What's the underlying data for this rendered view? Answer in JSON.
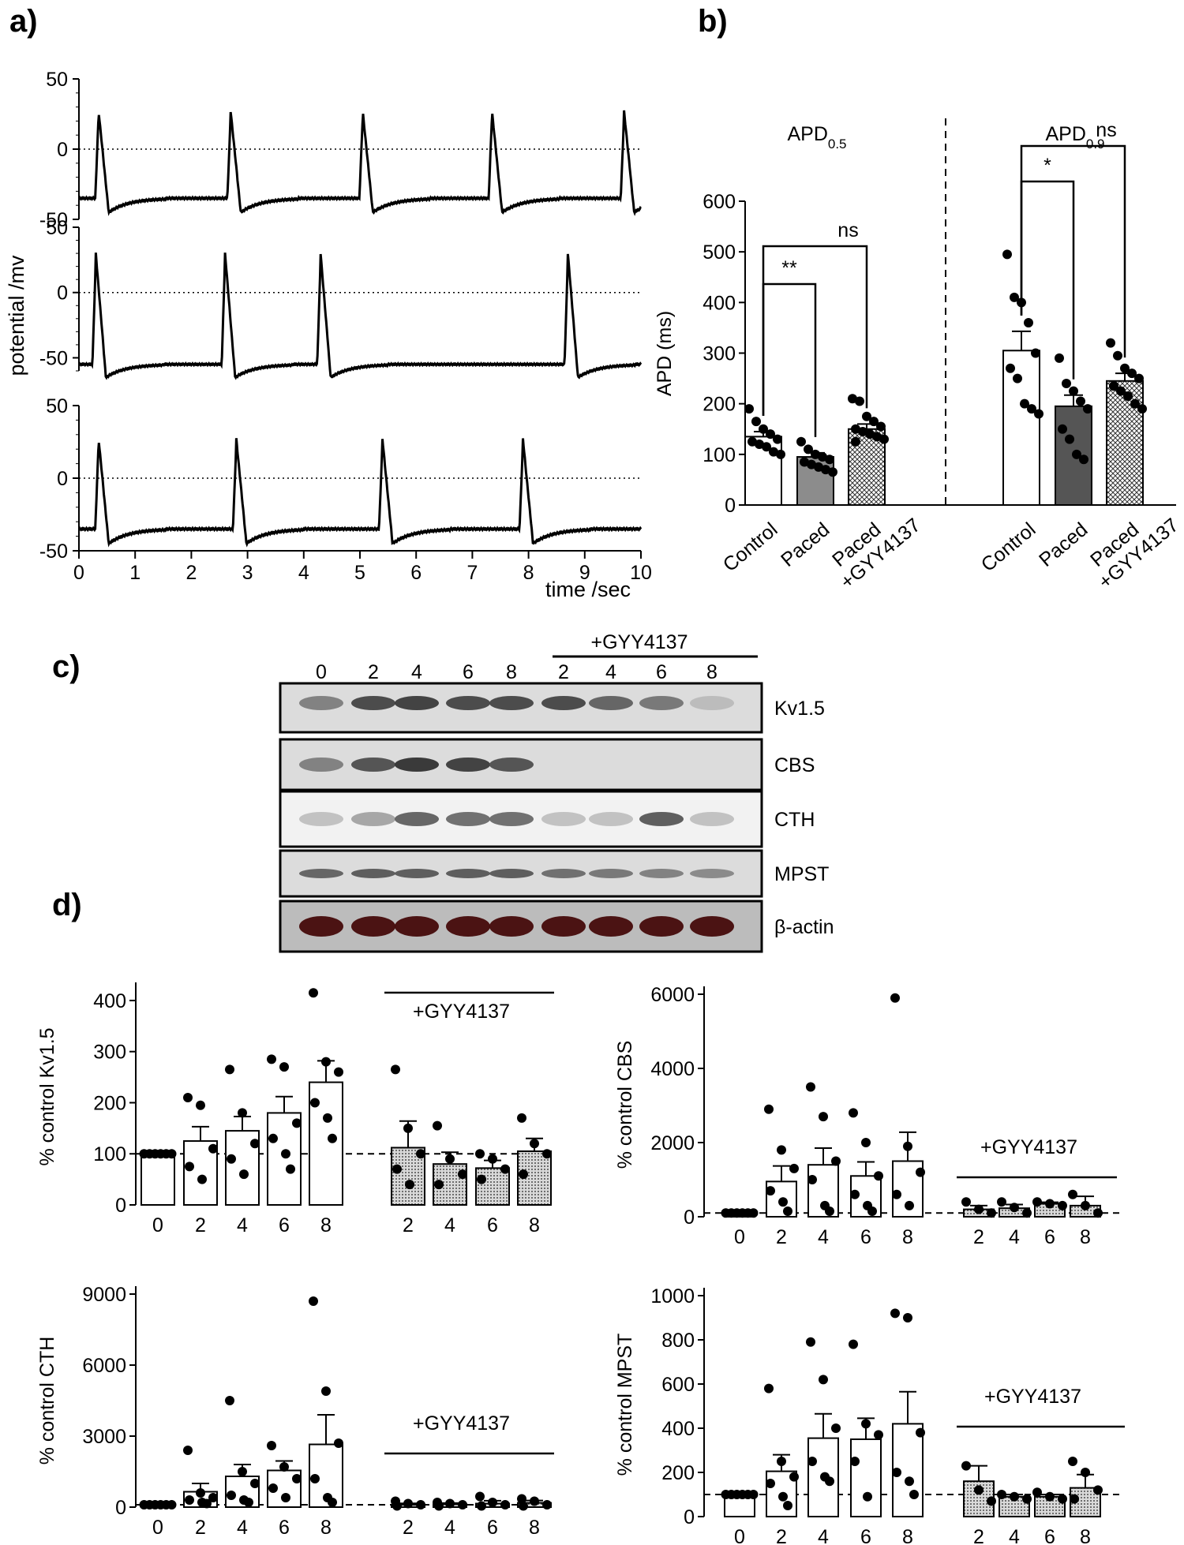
{
  "panels": {
    "a": "a)",
    "b": "b)",
    "c": "c)",
    "d": "d)"
  },
  "colors": {
    "white_bar": "#ffffff",
    "gray_bar": "#8c8c8c",
    "dark_bar": "#555555",
    "dot_fill": "#d9d9d9",
    "blot_bg": "#cfcfcf"
  },
  "chart_data": [
    {
      "id": "a",
      "type": "line",
      "xlabel": "time /sec",
      "ylabel": "potential /mv",
      "xlim": [
        0,
        10
      ],
      "x_ticks": [
        "0",
        "1",
        "2",
        "3",
        "4",
        "5",
        "6",
        "7",
        "8",
        "9",
        "10"
      ],
      "traces": [
        {
          "ylim": [
            -50,
            50
          ],
          "y_ticks": [
            "50",
            "0",
            "-50"
          ],
          "rest": -35,
          "peak": 27,
          "spikes": [
            0.35,
            2.7,
            5.05,
            7.35,
            9.7
          ]
        },
        {
          "ylim": [
            -60,
            50
          ],
          "y_ticks": [
            "50",
            "0",
            "-50"
          ],
          "rest": -55,
          "peak": 30,
          "spikes": [
            0.3,
            2.6,
            4.3,
            8.7
          ]
        },
        {
          "ylim": [
            -50,
            50
          ],
          "y_ticks": [
            "50",
            "0",
            "-50"
          ],
          "rest": -35,
          "peak": 27,
          "spikes": [
            0.35,
            2.8,
            5.4,
            7.9
          ]
        }
      ]
    },
    {
      "id": "b",
      "type": "bar",
      "ylabel": "APD (ms)",
      "ylim": [
        0,
        600
      ],
      "y_ticks": [
        "0",
        "100",
        "200",
        "300",
        "400",
        "500",
        "600"
      ],
      "groups": [
        {
          "title": "APD",
          "sub": "0.5",
          "categories": [
            "Control",
            "Paced",
            "Paced +GYY4137"
          ],
          "values": [
            135,
            95,
            150
          ],
          "sem": [
            10,
            8,
            10
          ],
          "points": [
            [
              190,
              165,
              150,
              140,
              130,
              125,
              120,
              115,
              105,
              100
            ],
            [
              125,
              110,
              100,
              95,
              90,
              85,
              80,
              75,
              70,
              65
            ],
            [
              210,
              205,
              175,
              165,
              155,
              150,
              145,
              140,
              135,
              130,
              125
            ]
          ],
          "sig": [
            {
              "from": 0,
              "to": 1,
              "label": "**"
            },
            {
              "from": 0,
              "to": 2,
              "label": "ns"
            }
          ]
        },
        {
          "title": "APD",
          "sub": "0.9",
          "categories": [
            "Control",
            "Paced",
            "Paced +GYY4137"
          ],
          "values": [
            305,
            195,
            245
          ],
          "sem": [
            38,
            22,
            15
          ],
          "points": [
            [
              495,
              410,
              400,
              360,
              300,
              270,
              250,
              200,
              190,
              180
            ],
            [
              290,
              240,
              225,
              205,
              190,
              150,
              130,
              100,
              90
            ],
            [
              320,
              295,
              270,
              260,
              250,
              235,
              225,
              215,
              200,
              190
            ]
          ],
          "sig": [
            {
              "from": 0,
              "to": 1,
              "label": "*"
            },
            {
              "from": 0,
              "to": 2,
              "label": "ns"
            }
          ]
        }
      ]
    },
    {
      "id": "c",
      "type": "table",
      "lanes": [
        "0",
        "2",
        "4",
        "6",
        "8",
        "2",
        "4",
        "6",
        "8"
      ],
      "treatment_label": "+GYY4137",
      "bands": [
        {
          "name": "Kv1.5",
          "intensity": [
            0.4,
            0.7,
            0.75,
            0.7,
            0.7,
            0.7,
            0.55,
            0.45,
            0.08
          ]
        },
        {
          "name": "CBS",
          "intensity": [
            0.4,
            0.65,
            0.8,
            0.75,
            0.65,
            0,
            0,
            0,
            0
          ]
        },
        {
          "name": "CTH",
          "intensity": [
            0.05,
            0.2,
            0.55,
            0.5,
            0.5,
            0.05,
            0.05,
            0.6,
            0.05
          ]
        },
        {
          "name": "MPST",
          "intensity": [
            0.55,
            0.6,
            0.6,
            0.6,
            0.6,
            0.5,
            0.45,
            0.4,
            0.35
          ]
        },
        {
          "name": "β-actin",
          "intensity": [
            0.9,
            0.9,
            0.9,
            0.9,
            0.9,
            0.9,
            0.9,
            0.9,
            0.9
          ]
        }
      ]
    },
    {
      "id": "d-kv15",
      "type": "bar",
      "ylabel": "% control Kv1.5",
      "ylim": [
        0,
        420
      ],
      "y_ticks": [
        "0",
        "100",
        "200",
        "300",
        "400"
      ],
      "categories": [
        "0",
        "2",
        "4",
        "6",
        "8",
        "2",
        "4",
        "6",
        "8"
      ],
      "treatment_label": "+GYY4137",
      "baseline": 100,
      "values": [
        100,
        125,
        145,
        180,
        240,
        112,
        80,
        72,
        105
      ],
      "sem": [
        0,
        28,
        28,
        32,
        42,
        52,
        23,
        15,
        25
      ],
      "points": [
        [
          100,
          100,
          100,
          100,
          100,
          100
        ],
        [
          210,
          195,
          110,
          75,
          50
        ],
        [
          265,
          180,
          120,
          90,
          60
        ],
        [
          285,
          270,
          160,
          130,
          100,
          70
        ],
        [
          415,
          280,
          260,
          200,
          170,
          130
        ],
        [
          265,
          150,
          100,
          70,
          40
        ],
        [
          155,
          90,
          60,
          40
        ],
        [
          100,
          90,
          70,
          50
        ],
        [
          170,
          120,
          100,
          60
        ]
      ]
    },
    {
      "id": "d-cbs",
      "type": "bar",
      "ylabel": "% control CBS",
      "ylim": [
        0,
        6000
      ],
      "y_ticks": [
        "0",
        "2000",
        "4000",
        "6000"
      ],
      "categories": [
        "0",
        "2",
        "4",
        "6",
        "8",
        "2",
        "4",
        "6",
        "8"
      ],
      "treatment_label": "+GYY4137",
      "baseline": 100,
      "values": [
        100,
        950,
        1400,
        1100,
        1500,
        200,
        230,
        350,
        300
      ],
      "sem": [
        0,
        420,
        450,
        380,
        780,
        100,
        100,
        40,
        250
      ],
      "points": [
        [
          100,
          100,
          100,
          100,
          100,
          100
        ],
        [
          2900,
          1800,
          1300,
          700,
          400,
          150
        ],
        [
          3500,
          2700,
          1500,
          1000,
          300,
          150
        ],
        [
          2800,
          2000,
          1100,
          600,
          300,
          150
        ],
        [
          5900,
          1900,
          1200,
          600,
          300
        ],
        [
          400,
          200,
          100
        ],
        [
          400,
          250,
          100
        ],
        [
          400,
          350,
          300
        ],
        [
          600,
          300,
          100
        ]
      ]
    },
    {
      "id": "d-cth",
      "type": "bar",
      "ylabel": "% control CTH",
      "ylim": [
        0,
        9000
      ],
      "y_ticks": [
        "0",
        "3000",
        "6000",
        "9000"
      ],
      "categories": [
        "0",
        "2",
        "4",
        "6",
        "8",
        "2",
        "4",
        "6",
        "8"
      ],
      "treatment_label": "+GYY4137",
      "baseline": 100,
      "values": [
        100,
        650,
        1300,
        1550,
        2650,
        100,
        120,
        150,
        180
      ],
      "sem": [
        0,
        350,
        500,
        400,
        1250,
        60,
        50,
        120,
        100
      ],
      "points": [
        [
          100,
          100,
          100,
          100,
          100,
          100
        ],
        [
          2400,
          600,
          400,
          300,
          200,
          150
        ],
        [
          4500,
          1500,
          1000,
          500,
          300,
          200
        ],
        [
          2600,
          1700,
          1200,
          800,
          400
        ],
        [
          8700,
          4900,
          2700,
          1200,
          400,
          200
        ],
        [
          250,
          150,
          100,
          50
        ],
        [
          200,
          150,
          100,
          50
        ],
        [
          450,
          200,
          100,
          50
        ],
        [
          350,
          250,
          100,
          50
        ]
      ]
    },
    {
      "id": "d-mpst",
      "type": "bar",
      "ylabel": "% control MPST",
      "ylim": [
        0,
        1000
      ],
      "y_ticks": [
        "0",
        "200",
        "400",
        "600",
        "800",
        "1000"
      ],
      "categories": [
        "0",
        "2",
        "4",
        "6",
        "8",
        "2",
        "4",
        "6",
        "8"
      ],
      "treatment_label": "+GYY4137",
      "baseline": 100,
      "values": [
        100,
        205,
        355,
        350,
        420,
        160,
        90,
        90,
        130
      ],
      "sem": [
        0,
        75,
        110,
        95,
        145,
        70,
        10,
        10,
        60
      ],
      "points": [
        [
          100,
          100,
          100,
          100,
          100,
          100
        ],
        [
          580,
          250,
          180,
          150,
          90,
          50
        ],
        [
          790,
          620,
          400,
          250,
          180,
          160
        ],
        [
          780,
          420,
          370,
          250,
          90
        ],
        [
          920,
          900,
          380,
          200,
          160,
          100
        ],
        [
          230,
          120,
          70
        ],
        [
          100,
          90,
          80
        ],
        [
          110,
          90,
          80
        ],
        [
          250,
          200,
          120,
          80
        ]
      ]
    }
  ]
}
